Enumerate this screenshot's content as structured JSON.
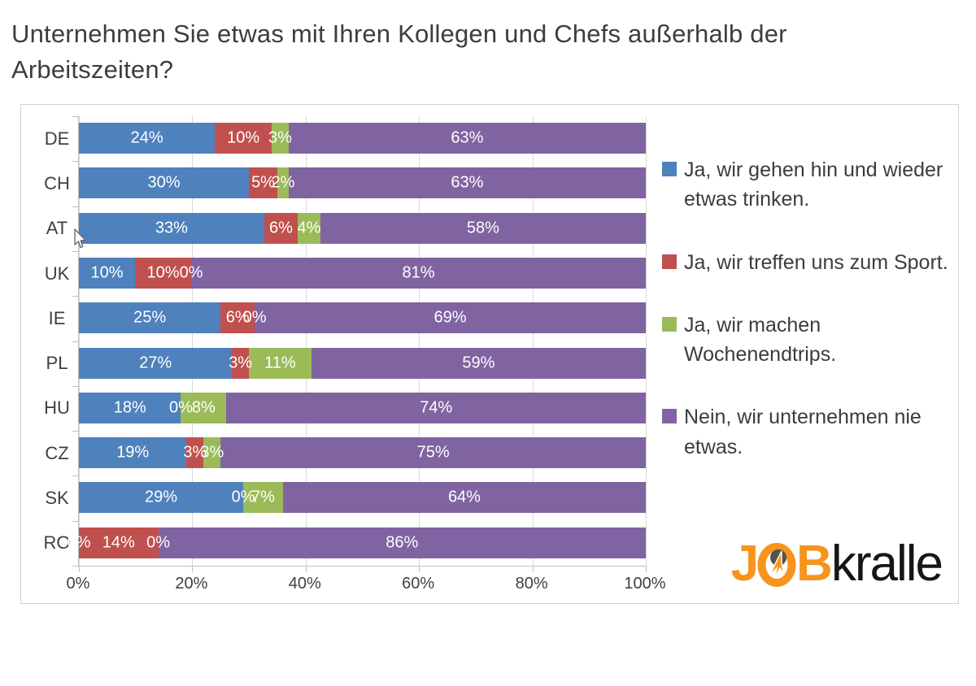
{
  "title": "Unternehmen Sie etwas mit Ihren Kollegen und Chefs außerhalb der Arbeitszeiten?",
  "chart_data": {
    "type": "bar",
    "orientation": "horizontal",
    "stacked": true,
    "categories": [
      "DE",
      "CH",
      "AT",
      "UK",
      "IE",
      "PL",
      "HU",
      "CZ",
      "SK",
      "RO"
    ],
    "series": [
      {
        "name": "Ja, wir gehen hin und wieder etwas trinken.",
        "color": "#4f81bd",
        "values": [
          24,
          30,
          33,
          10,
          25,
          27,
          18,
          19,
          29,
          0
        ]
      },
      {
        "name": "Ja, wir treffen uns zum Sport.",
        "color": "#c0504d",
        "values": [
          10,
          5,
          6,
          10,
          6,
          3,
          0,
          3,
          0,
          14
        ]
      },
      {
        "name": "Ja, wir machen Wochenendtrips.",
        "color": "#9bbb59",
        "values": [
          3,
          2,
          4,
          0,
          0,
          11,
          8,
          3,
          7,
          0
        ]
      },
      {
        "name": "Nein, wir unternehmen nie etwas.",
        "color": "#8064a2",
        "values": [
          63,
          63,
          58,
          81,
          69,
          59,
          74,
          75,
          64,
          86
        ]
      }
    ],
    "x_ticks": [
      "0%",
      "20%",
      "40%",
      "60%",
      "80%",
      "100%"
    ],
    "x_tick_positions": [
      0,
      20,
      40,
      60,
      80,
      100
    ],
    "xlim": [
      0,
      100
    ],
    "grid": true,
    "legend_position": "right",
    "data_labels": true,
    "data_label_format": "percent"
  },
  "logo": {
    "bold_part_j": "J",
    "bold_part_b": "B",
    "regular_part": "kralle",
    "orange": "#f7941d",
    "black": "#161616"
  },
  "colors": {
    "title_text": "#3d3d3d",
    "axis_text": "#3f3f3f",
    "gridline": "#d9d9d9",
    "axis_line": "#bfbfbf",
    "chart_border": "#d2d0d0",
    "bar_label": "#ffffff"
  }
}
